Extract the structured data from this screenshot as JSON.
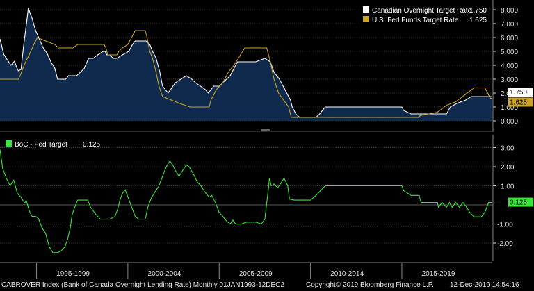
{
  "chart_data": [
    {
      "type": "area",
      "x_range": [
        1993.0,
        2019.95
      ],
      "ylim": [
        -0.6,
        8.6
      ],
      "y_ticks": [
        "8.000",
        "7.000",
        "6.000",
        "5.000",
        "4.000",
        "3.000",
        "2.000",
        "1.000",
        "0.000"
      ],
      "y_tick_values": [
        8,
        7,
        6,
        5,
        4,
        3,
        2,
        1,
        0
      ],
      "grid": true,
      "legend_placement": "top-right",
      "series": [
        {
          "name": "Canadian Overnight Target Rate",
          "last_value_label": "1.750",
          "color": "#ffffff",
          "fill": "#0f2a4d",
          "points": [
            [
              1993.0,
              5.9
            ],
            [
              1993.2,
              4.8
            ],
            [
              1993.4,
              4.4
            ],
            [
              1993.6,
              4.0
            ],
            [
              1993.8,
              4.3
            ],
            [
              1993.9,
              3.9
            ],
            [
              1994.0,
              3.6
            ],
            [
              1994.15,
              3.7
            ],
            [
              1994.3,
              5.5
            ],
            [
              1994.45,
              7.0
            ],
            [
              1994.55,
              8.1
            ],
            [
              1994.75,
              7.4
            ],
            [
              1994.95,
              6.5
            ],
            [
              1995.15,
              5.9
            ],
            [
              1995.35,
              5.3
            ],
            [
              1995.6,
              4.8
            ],
            [
              1995.8,
              4.2
            ],
            [
              1996.0,
              3.8
            ],
            [
              1996.15,
              3.0
            ],
            [
              1996.6,
              3.0
            ],
            [
              1996.75,
              3.25
            ],
            [
              1997.2,
              3.25
            ],
            [
              1997.6,
              3.75
            ],
            [
              1997.85,
              4.5
            ],
            [
              1998.1,
              4.5
            ],
            [
              1998.35,
              4.75
            ],
            [
              1998.65,
              5.0
            ],
            [
              1998.75,
              5.0
            ],
            [
              1998.85,
              4.75
            ],
            [
              1999.0,
              4.75
            ],
            [
              1999.2,
              4.5
            ],
            [
              1999.4,
              4.5
            ],
            [
              1999.7,
              4.75
            ],
            [
              2000.05,
              5.0
            ],
            [
              2000.25,
              5.5
            ],
            [
              2000.4,
              5.75
            ],
            [
              2001.0,
              5.75
            ],
            [
              2001.2,
              5.5
            ],
            [
              2001.35,
              5.0
            ],
            [
              2001.55,
              4.5
            ],
            [
              2001.75,
              3.5
            ],
            [
              2001.9,
              2.5
            ],
            [
              2002.2,
              2.0
            ],
            [
              2002.6,
              2.75
            ],
            [
              2003.2,
              3.25
            ],
            [
              2003.5,
              3.0
            ],
            [
              2003.7,
              2.75
            ],
            [
              2004.25,
              2.25
            ],
            [
              2004.4,
              2.0
            ],
            [
              2004.7,
              2.5
            ],
            [
              2005.0,
              2.5
            ],
            [
              2005.4,
              3.0
            ],
            [
              2005.6,
              3.25
            ],
            [
              2005.8,
              3.75
            ],
            [
              2006.0,
              4.25
            ],
            [
              2006.4,
              4.25
            ],
            [
              2007.0,
              4.25
            ],
            [
              2007.5,
              4.5
            ],
            [
              2007.8,
              4.25
            ],
            [
              2008.0,
              3.5
            ],
            [
              2008.3,
              3.0
            ],
            [
              2008.6,
              2.25
            ],
            [
              2008.9,
              1.5
            ],
            [
              2009.0,
              1.0
            ],
            [
              2009.2,
              0.5
            ],
            [
              2009.4,
              0.25
            ],
            [
              2010.3,
              0.25
            ],
            [
              2010.5,
              0.5
            ],
            [
              2010.65,
              0.75
            ],
            [
              2010.8,
              1.0
            ],
            [
              2015.0,
              1.0
            ],
            [
              2015.1,
              0.75
            ],
            [
              2015.5,
              0.5
            ],
            [
              2017.45,
              0.5
            ],
            [
              2017.55,
              0.75
            ],
            [
              2017.65,
              1.0
            ],
            [
              2018.0,
              1.25
            ],
            [
              2018.5,
              1.5
            ],
            [
              2018.8,
              1.75
            ],
            [
              2019.95,
              1.75
            ]
          ]
        },
        {
          "name": "U.S. Fed Funds Target Rate",
          "last_value_label": "1.625",
          "color": "#c9a227",
          "points": [
            [
              1993.0,
              3.0
            ],
            [
              1994.0,
              3.0
            ],
            [
              1994.1,
              3.25
            ],
            [
              1994.25,
              3.75
            ],
            [
              1994.4,
              4.25
            ],
            [
              1994.6,
              4.75
            ],
            [
              1994.85,
              5.5
            ],
            [
              1995.05,
              6.0
            ],
            [
              1995.5,
              5.75
            ],
            [
              1996.0,
              5.5
            ],
            [
              1996.2,
              5.25
            ],
            [
              1997.0,
              5.25
            ],
            [
              1997.25,
              5.5
            ],
            [
              1998.7,
              5.5
            ],
            [
              1998.8,
              5.25
            ],
            [
              1998.9,
              4.75
            ],
            [
              1999.4,
              4.75
            ],
            [
              1999.5,
              5.0
            ],
            [
              1999.7,
              5.25
            ],
            [
              2000.0,
              5.5
            ],
            [
              2000.2,
              6.0
            ],
            [
              2000.4,
              6.5
            ],
            [
              2000.95,
              6.5
            ],
            [
              2001.05,
              6.0
            ],
            [
              2001.2,
              5.0
            ],
            [
              2001.35,
              4.5
            ],
            [
              2001.5,
              3.75
            ],
            [
              2001.7,
              2.5
            ],
            [
              2001.9,
              1.75
            ],
            [
              2002.85,
              1.25
            ],
            [
              2003.4,
              1.0
            ],
            [
              2004.45,
              1.0
            ],
            [
              2004.55,
              1.5
            ],
            [
              2004.85,
              2.25
            ],
            [
              2005.2,
              2.75
            ],
            [
              2005.5,
              3.5
            ],
            [
              2005.8,
              4.0
            ],
            [
              2006.05,
              4.5
            ],
            [
              2006.4,
              5.25
            ],
            [
              2007.6,
              5.25
            ],
            [
              2007.7,
              4.75
            ],
            [
              2007.8,
              4.25
            ],
            [
              2008.0,
              3.0
            ],
            [
              2008.25,
              2.0
            ],
            [
              2008.8,
              1.0
            ],
            [
              2008.95,
              0.25
            ],
            [
              2015.95,
              0.25
            ],
            [
              2016.0,
              0.375
            ],
            [
              2016.95,
              0.625
            ],
            [
              2017.2,
              0.875
            ],
            [
              2017.45,
              1.125
            ],
            [
              2017.95,
              1.375
            ],
            [
              2018.2,
              1.625
            ],
            [
              2018.45,
              1.875
            ],
            [
              2018.7,
              2.125
            ],
            [
              2018.95,
              2.375
            ],
            [
              2019.55,
              2.375
            ],
            [
              2019.65,
              2.125
            ],
            [
              2019.75,
              1.875
            ],
            [
              2019.85,
              1.625
            ],
            [
              2019.95,
              1.625
            ]
          ]
        }
      ]
    },
    {
      "type": "line",
      "x_range": [
        1993.0,
        2019.95
      ],
      "ylim": [
        -2.8,
        3.6
      ],
      "y_ticks": [
        "3.00",
        "2.00",
        "1.00",
        "-1.00",
        "-2.00"
      ],
      "y_tick_values": [
        3,
        2,
        1,
        -1,
        -2
      ],
      "grid": true,
      "legend_placement": "top-left",
      "series": [
        {
          "name": "BoC - Fed Target",
          "last_value_label": "0.125",
          "color": "#39e639",
          "points": [
            [
              1993.0,
              2.9
            ],
            [
              1993.15,
              1.9
            ],
            [
              1993.35,
              1.4
            ],
            [
              1993.55,
              1.0
            ],
            [
              1993.75,
              1.3
            ],
            [
              1993.95,
              0.6
            ],
            [
              1994.15,
              0.4
            ],
            [
              1994.35,
              0.1
            ],
            [
              1994.45,
              0.2
            ],
            [
              1994.6,
              -0.3
            ],
            [
              1994.75,
              -0.6
            ],
            [
              1994.95,
              -0.6
            ],
            [
              1995.1,
              -0.7
            ],
            [
              1995.3,
              -1.2
            ],
            [
              1995.5,
              -1.5
            ],
            [
              1995.7,
              -2.2
            ],
            [
              1995.9,
              -2.5
            ],
            [
              1996.15,
              -2.5
            ],
            [
              1996.35,
              -2.4
            ],
            [
              1996.55,
              -2.2
            ],
            [
              1996.7,
              -1.8
            ],
            [
              1996.85,
              -1.2
            ],
            [
              1996.95,
              -0.5
            ],
            [
              1997.1,
              -0.1
            ],
            [
              1997.25,
              0.25
            ],
            [
              1997.8,
              0.25
            ],
            [
              1997.95,
              -0.1
            ],
            [
              1998.25,
              -0.5
            ],
            [
              1998.5,
              -0.75
            ],
            [
              1999.0,
              -0.75
            ],
            [
              1999.3,
              -0.6
            ],
            [
              1999.45,
              -0.2
            ],
            [
              1999.55,
              0.2
            ],
            [
              1999.7,
              0.6
            ],
            [
              1999.85,
              0.8
            ],
            [
              2000.05,
              0.3
            ],
            [
              2000.2,
              -0.1
            ],
            [
              2000.4,
              -0.6
            ],
            [
              2000.6,
              -0.75
            ],
            [
              2000.95,
              -0.75
            ],
            [
              2001.1,
              -0.1
            ],
            [
              2001.3,
              0.4
            ],
            [
              2001.5,
              0.7
            ],
            [
              2001.7,
              1.0
            ],
            [
              2001.9,
              1.5
            ],
            [
              2002.1,
              2.0
            ],
            [
              2002.3,
              2.3
            ],
            [
              2002.45,
              2.1
            ],
            [
              2002.6,
              1.8
            ],
            [
              2002.8,
              1.5
            ],
            [
              2003.0,
              1.8
            ],
            [
              2003.2,
              2.1
            ],
            [
              2003.35,
              2.0
            ],
            [
              2003.6,
              1.6
            ],
            [
              2003.8,
              1.2
            ],
            [
              2004.0,
              1.0
            ],
            [
              2004.2,
              0.7
            ],
            [
              2004.45,
              0.4
            ],
            [
              2004.6,
              0.5
            ],
            [
              2004.8,
              0.1
            ],
            [
              2005.0,
              -0.4
            ],
            [
              2005.2,
              -0.6
            ],
            [
              2005.4,
              -0.85
            ],
            [
              2005.6,
              -1.0
            ],
            [
              2005.75,
              -0.8
            ],
            [
              2005.9,
              -1.0
            ],
            [
              2006.2,
              -1.0
            ],
            [
              2006.5,
              -0.9
            ],
            [
              2007.0,
              -0.9
            ],
            [
              2007.3,
              -1.0
            ],
            [
              2007.5,
              -0.75
            ],
            [
              2007.6,
              0.1
            ],
            [
              2007.7,
              0.9
            ],
            [
              2007.75,
              1.4
            ],
            [
              2007.85,
              1.0
            ],
            [
              2008.0,
              1.1
            ],
            [
              2008.2,
              0.9
            ],
            [
              2008.35,
              1.1
            ],
            [
              2008.55,
              1.4
            ],
            [
              2008.75,
              1.0
            ],
            [
              2008.85,
              0.3
            ],
            [
              2009.1,
              0.25
            ],
            [
              2010.0,
              0.25
            ],
            [
              2010.3,
              0.5
            ],
            [
              2010.55,
              0.75
            ],
            [
              2010.8,
              1.0
            ],
            [
              2015.0,
              1.0
            ],
            [
              2015.1,
              0.75
            ],
            [
              2015.5,
              0.5
            ],
            [
              2015.95,
              0.5
            ],
            [
              2016.05,
              0.125
            ],
            [
              2016.95,
              0.125
            ],
            [
              2017.0,
              -0.125
            ],
            [
              2017.2,
              0.125
            ],
            [
              2017.45,
              -0.125
            ],
            [
              2017.6,
              0.125
            ],
            [
              2017.75,
              -0.125
            ],
            [
              2017.95,
              0.125
            ],
            [
              2018.15,
              -0.125
            ],
            [
              2018.35,
              0.125
            ],
            [
              2018.55,
              -0.125
            ],
            [
              2018.7,
              -0.375
            ],
            [
              2018.95,
              -0.625
            ],
            [
              2019.35,
              -0.625
            ],
            [
              2019.55,
              -0.375
            ],
            [
              2019.65,
              -0.125
            ],
            [
              2019.75,
              0.125
            ],
            [
              2019.95,
              0.125
            ]
          ]
        }
      ]
    }
  ],
  "x_axis": {
    "labels": [
      {
        "text": "1995-1999",
        "at": 1997.0
      },
      {
        "text": "2000-2004",
        "at": 2002.0
      },
      {
        "text": "2005-2009",
        "at": 2007.0
      },
      {
        "text": "2010-2014",
        "at": 2012.0
      },
      {
        "text": "2015-2019",
        "at": 2017.0
      }
    ],
    "separators": [
      1995.0,
      2000.0,
      2005.0,
      2010.0,
      2015.0
    ]
  },
  "footer": {
    "left": "CABROVER Index (Bank of Canada Overnight Lending Rate)  Monthly 01JAN1993-12DEC2",
    "center": "Copyright© 2019 Bloomberg Finance L.P.",
    "right": "12-Dec-2019 14:54:16"
  },
  "colors": {
    "background": "#000000",
    "grid": "#3a3a3a",
    "axis_text": "#e0e0e0",
    "canadian": "#ffffff",
    "canadian_fill": "#0f2a4d",
    "fed": "#c9a227",
    "spread": "#39e639"
  }
}
